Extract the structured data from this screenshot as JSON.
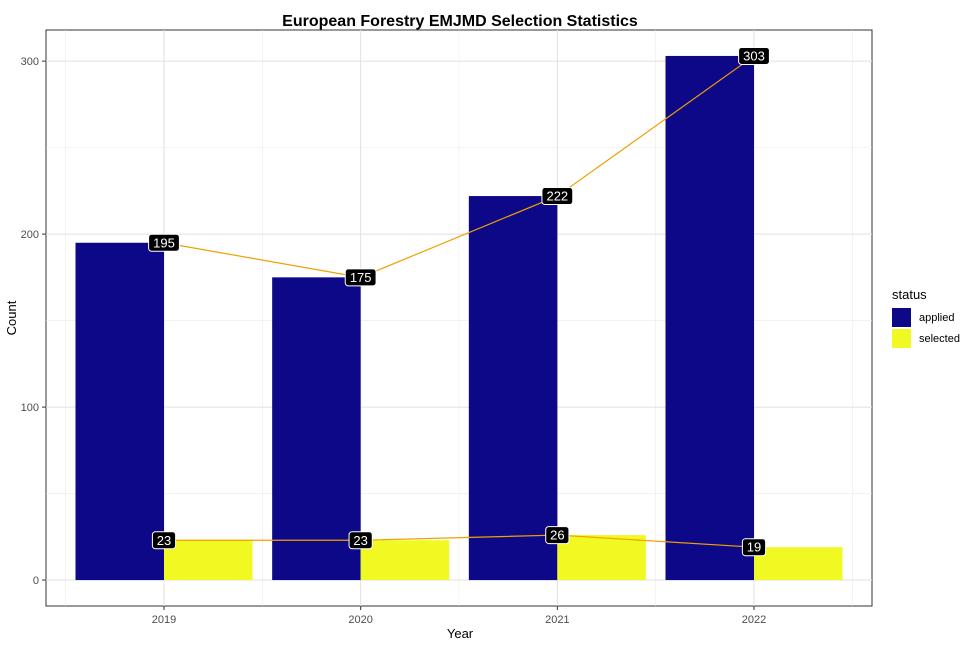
{
  "chart_data": {
    "type": "bar",
    "title": "European Forestry EMJMD Selection Statistics",
    "xlabel": "Year",
    "ylabel": "Count",
    "categories": [
      "2019",
      "2020",
      "2021",
      "2022"
    ],
    "series": [
      {
        "name": "applied",
        "values": [
          195,
          175,
          222,
          303
        ],
        "color": "#0d0887"
      },
      {
        "name": "selected",
        "values": [
          23,
          23,
          26,
          19
        ],
        "color": "#f0f921"
      }
    ],
    "line_color": "#f0a000",
    "ylim": [
      -15,
      318
    ],
    "yticks": [
      0,
      100,
      200,
      300
    ],
    "grid": true,
    "legend": {
      "title": "status",
      "position": "right"
    }
  }
}
